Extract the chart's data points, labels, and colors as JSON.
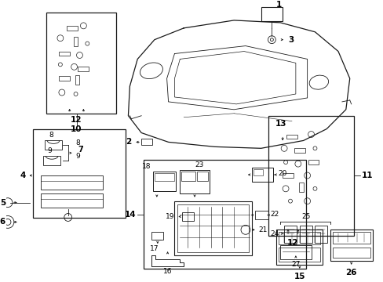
{
  "bg_color": "#ffffff",
  "fig_width": 4.89,
  "fig_height": 3.6,
  "dpi": 100,
  "line_color": "#1a1a1a",
  "text_color": "#000000",
  "font_size": 6.5
}
